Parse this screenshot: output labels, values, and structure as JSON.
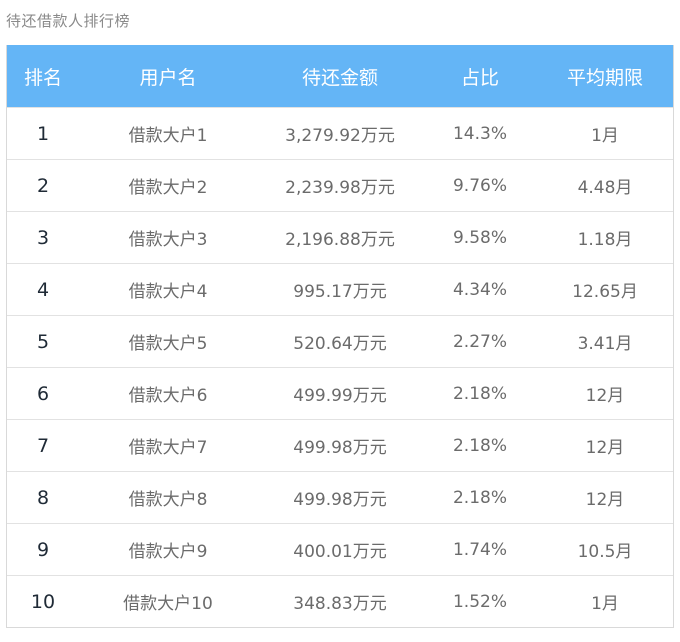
{
  "title": "待还借款人排行榜",
  "table": {
    "headers": {
      "rank": "排名",
      "user": "用户名",
      "amount": "待还金额",
      "ratio": "占比",
      "period": "平均期限"
    },
    "rows": [
      {
        "rank": "1",
        "user": "借款大户1",
        "amount": "3,279.92万元",
        "ratio": "14.3%",
        "period": "1月"
      },
      {
        "rank": "2",
        "user": "借款大户2",
        "amount": "2,239.98万元",
        "ratio": "9.76%",
        "period": "4.48月"
      },
      {
        "rank": "3",
        "user": "借款大户3",
        "amount": "2,196.88万元",
        "ratio": "9.58%",
        "period": "1.18月"
      },
      {
        "rank": "4",
        "user": "借款大户4",
        "amount": "995.17万元",
        "ratio": "4.34%",
        "period": "12.65月"
      },
      {
        "rank": "5",
        "user": "借款大户5",
        "amount": "520.64万元",
        "ratio": "2.27%",
        "period": "3.41月"
      },
      {
        "rank": "6",
        "user": "借款大户6",
        "amount": "499.99万元",
        "ratio": "2.18%",
        "period": "12月"
      },
      {
        "rank": "7",
        "user": "借款大户7",
        "amount": "499.98万元",
        "ratio": "2.18%",
        "period": "12月"
      },
      {
        "rank": "8",
        "user": "借款大户8",
        "amount": "499.98万元",
        "ratio": "2.18%",
        "period": "12月"
      },
      {
        "rank": "9",
        "user": "借款大户9",
        "amount": "400.01万元",
        "ratio": "1.74%",
        "period": "10.5月"
      },
      {
        "rank": "10",
        "user": "借款大户10",
        "amount": "348.83万元",
        "ratio": "1.52%",
        "period": "1月"
      }
    ]
  },
  "colors": {
    "header_bg": "#64b5f6",
    "header_text": "#ffffff",
    "rank_text": "#1f2a36",
    "cell_text": "#6b6b6b",
    "title_text": "#8a8a8a",
    "divider": "#e2e2e2"
  }
}
